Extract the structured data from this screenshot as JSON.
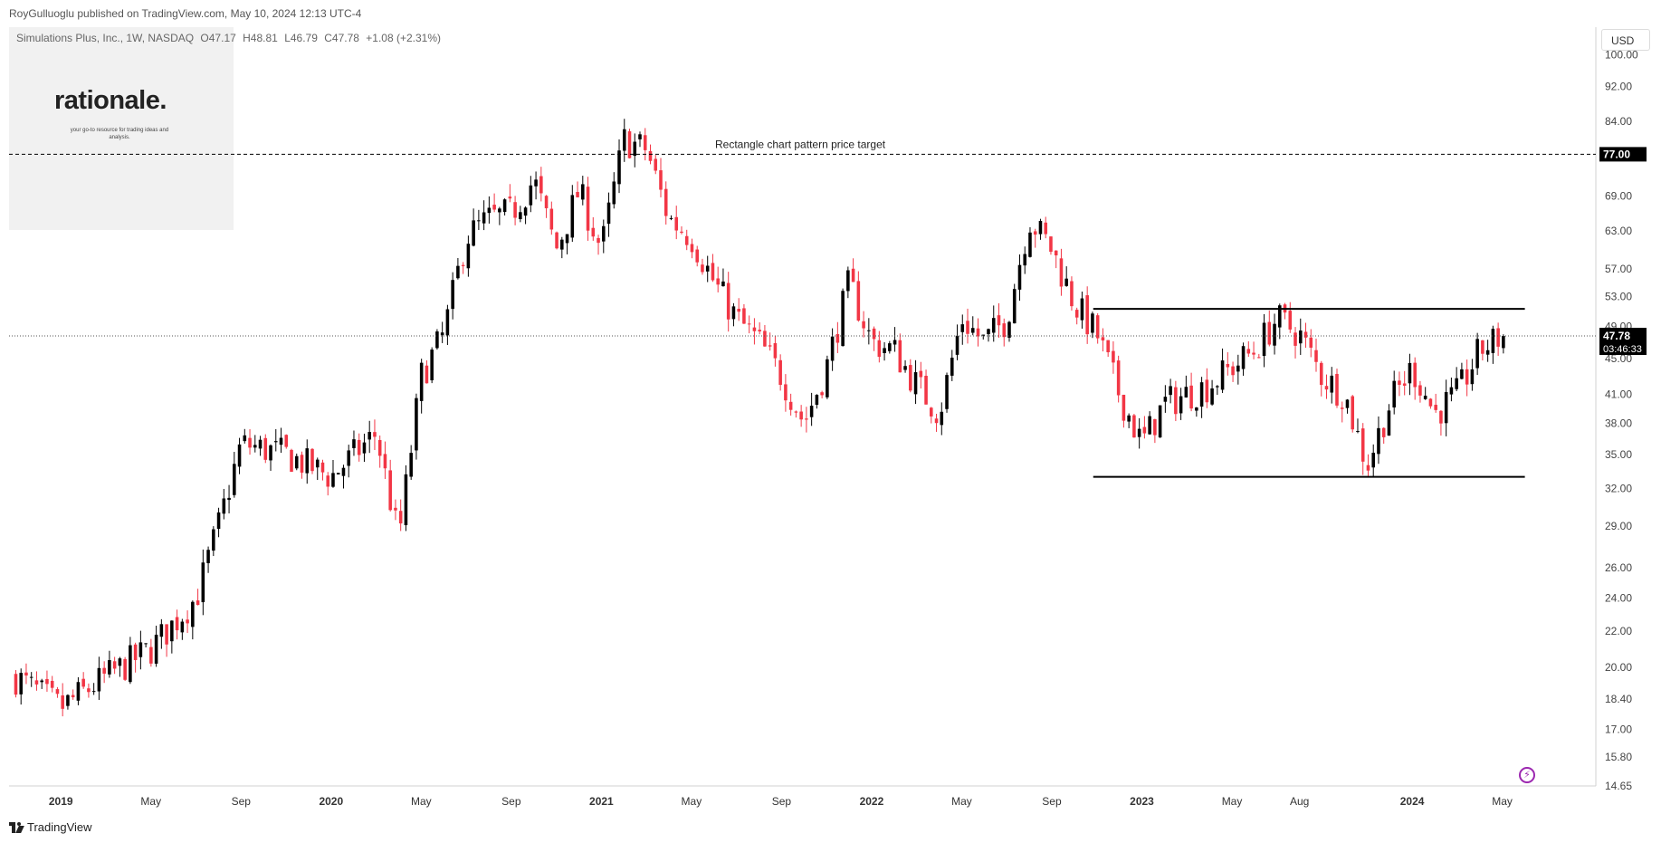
{
  "publish_line": "RoyGulluoglu published on TradingView.com, May 10, 2024 12:13 UTC-4",
  "legend": {
    "symbol": "Simulations Plus, Inc., 1W, NASDAQ",
    "open": "O47.17",
    "high": "H48.81",
    "low": "L46.79",
    "close": "C47.78",
    "change": "+1.08 (+2.31%)"
  },
  "currency": "USD",
  "logo": {
    "title": "rationale.",
    "subtitle": "your go-to resource for trading ideas and analysis."
  },
  "brand": "TradingView",
  "annotation": "Rectangle chart pattern price target",
  "colors": {
    "up": "#000000",
    "down": "#f23645",
    "accent": "#9c27b0"
  },
  "chart_data": {
    "type": "candlestick",
    "title": "Simulations Plus, Inc., 1W, NASDAQ",
    "y_scale": "log",
    "ylim": [
      14.65,
      105
    ],
    "y_ticks": [
      100.0,
      92.0,
      84.0,
      77.0,
      69.0,
      63.0,
      57.0,
      53.0,
      49.0,
      45.0,
      41.0,
      38.0,
      35.0,
      32.0,
      29.0,
      26.0,
      24.0,
      22.0,
      20.0,
      18.4,
      17.0,
      15.8,
      14.65
    ],
    "y_tick_labels": [
      "100.00",
      "92.00",
      "84.00",
      "",
      "69.00",
      "63.00",
      "57.00",
      "53.00",
      "49.00",
      "45.00",
      "41.00",
      "38.00",
      "35.00",
      "32.00",
      "29.00",
      "26.00",
      "24.00",
      "22.00",
      "20.00",
      "18.40",
      "17.00",
      "15.80",
      "14.65"
    ],
    "x_labels": [
      "2019",
      "May",
      "Sep",
      "2020",
      "May",
      "Sep",
      "2021",
      "May",
      "Sep",
      "2022",
      "May",
      "Sep",
      "2023",
      "May",
      "Aug",
      "2024",
      "May"
    ],
    "x_label_dates": [
      "2019-01",
      "2019-05",
      "2019-09",
      "2020-01",
      "2020-05",
      "2020-09",
      "2021-01",
      "2021-05",
      "2021-09",
      "2022-01",
      "2022-05",
      "2022-09",
      "2023-01",
      "2023-05",
      "2023-08",
      "2024-01",
      "2024-05"
    ],
    "date_range": [
      "2018-11",
      "2024-05"
    ],
    "price_path_dates": [
      "2018-11",
      "2019-01",
      "2019-03",
      "2019-05",
      "2019-07",
      "2019-08",
      "2019-09",
      "2019-11",
      "2020-01",
      "2020-03",
      "2020-04",
      "2020-05",
      "2020-06",
      "2020-07",
      "2020-08",
      "2020-09",
      "2020-10",
      "2020-11",
      "2020-12",
      "2021-01",
      "2021-02",
      "2021-03",
      "2021-04",
      "2021-05",
      "2021-06",
      "2021-07",
      "2021-08",
      "2021-09",
      "2021-10",
      "2021-11",
      "2021-12",
      "2022-01",
      "2022-02",
      "2022-03",
      "2022-04",
      "2022-05",
      "2022-06",
      "2022-07",
      "2022-08",
      "2022-09",
      "2022-10",
      "2022-11",
      "2022-12",
      "2023-01",
      "2023-02",
      "2023-03",
      "2023-04",
      "2023-05",
      "2023-06",
      "2023-07",
      "2023-08",
      "2023-09",
      "2023-10",
      "2023-11",
      "2023-12",
      "2024-01",
      "2024-02",
      "2024-03",
      "2024-04",
      "2024-05"
    ],
    "price_path": [
      19.5,
      18.0,
      19.5,
      21.0,
      24.0,
      29.0,
      36.0,
      35.0,
      33.0,
      37.0,
      28.0,
      43.0,
      48.0,
      62.0,
      65.0,
      66.0,
      72.0,
      60.0,
      70.0,
      60.0,
      80.0,
      78.0,
      65.0,
      62.0,
      55.0,
      50.0,
      47.0,
      43.0,
      38.0,
      44.0,
      55.0,
      47.0,
      46.0,
      42.0,
      39.0,
      50.0,
      47.0,
      50.0,
      65.0,
      60.0,
      52.0,
      48.0,
      41.0,
      36.0,
      40.0,
      41.0,
      42.0,
      44.0,
      46.0,
      50.0,
      48.0,
      43.0,
      41.0,
      34.0,
      40.0,
      44.0,
      39.0,
      41.0,
      46.0,
      47.78
    ],
    "last_price": 47.78,
    "last_price_label": "47.78",
    "countdown": "03:46:33",
    "target_price": 77.0,
    "target_label": "77.00",
    "rectangle": {
      "upper": 51.3,
      "lower": 33.0,
      "start": "2022-11",
      "end": "2024-05"
    },
    "grid": false
  }
}
